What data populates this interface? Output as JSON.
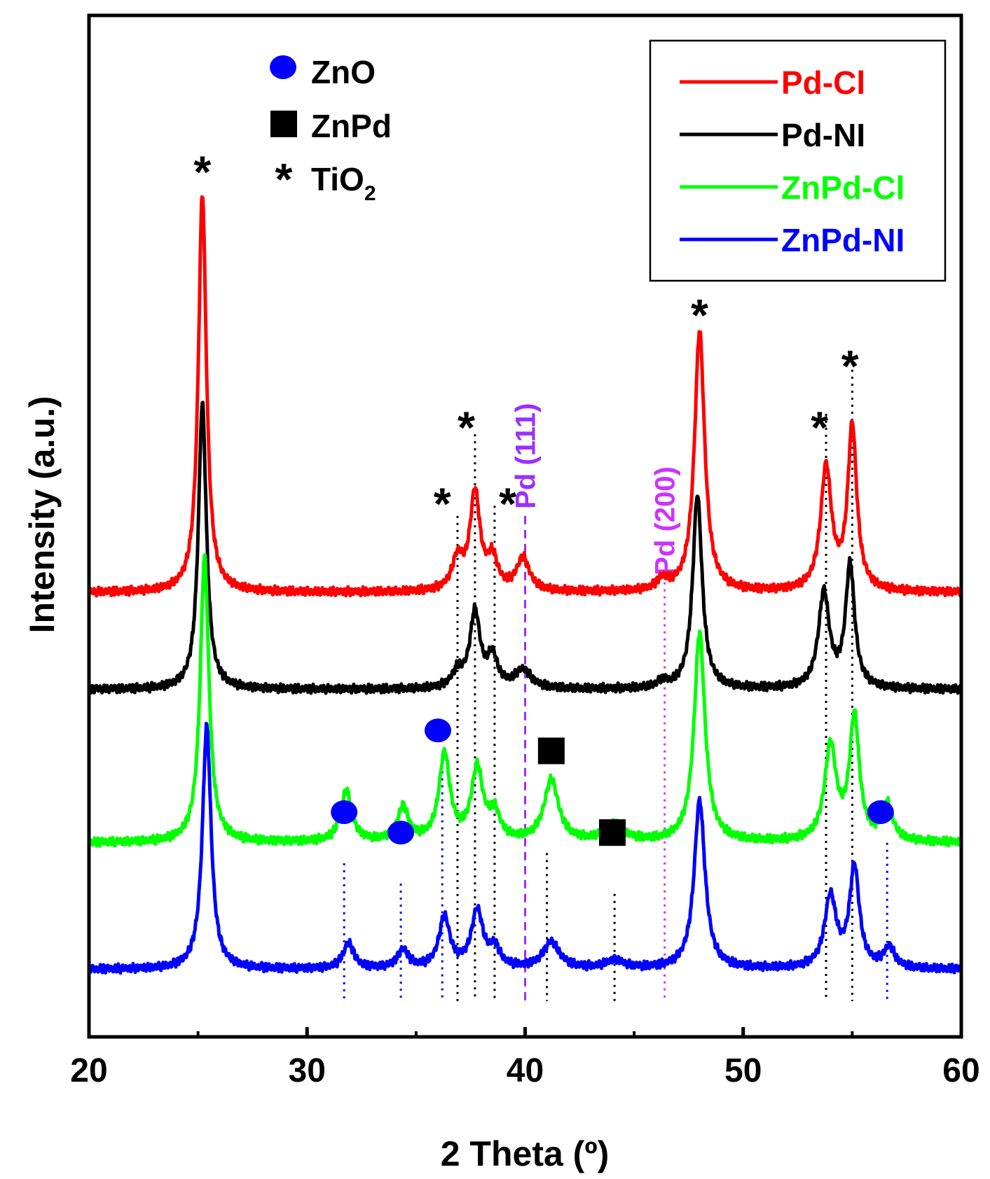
{
  "chart_data": {
    "type": "line",
    "title": "",
    "xlabel": "2 Theta (º)",
    "ylabel": "Intensity (a.u.)",
    "xlim": [
      20,
      60
    ],
    "ylim": [
      0,
      1
    ],
    "x_ticks": [
      20,
      30,
      40,
      50,
      60
    ],
    "grid": false,
    "legend_position": "top-right",
    "series": [
      {
        "name": "Pd-Cl",
        "color": "#ff0000",
        "baseline": 0.435,
        "peaks": [
          {
            "x": 25.2,
            "h": 0.39,
            "w": 0.22
          },
          {
            "x": 36.9,
            "h": 0.03,
            "w": 0.3
          },
          {
            "x": 37.7,
            "h": 0.095,
            "w": 0.28
          },
          {
            "x": 38.5,
            "h": 0.03,
            "w": 0.28
          },
          {
            "x": 39.9,
            "h": 0.032,
            "w": 0.35
          },
          {
            "x": 46.3,
            "h": 0.01,
            "w": 0.3
          },
          {
            "x": 48.0,
            "h": 0.255,
            "w": 0.28
          },
          {
            "x": 53.8,
            "h": 0.12,
            "w": 0.3
          },
          {
            "x": 55.0,
            "h": 0.16,
            "w": 0.25
          }
        ]
      },
      {
        "name": "Pd-NI",
        "color": "#000000",
        "baseline": 0.34,
        "peaks": [
          {
            "x": 25.2,
            "h": 0.28,
            "w": 0.22
          },
          {
            "x": 36.9,
            "h": 0.015,
            "w": 0.3
          },
          {
            "x": 37.7,
            "h": 0.074,
            "w": 0.28
          },
          {
            "x": 38.5,
            "h": 0.03,
            "w": 0.28
          },
          {
            "x": 39.9,
            "h": 0.018,
            "w": 0.45
          },
          {
            "x": 46.3,
            "h": 0.006,
            "w": 0.3
          },
          {
            "x": 47.9,
            "h": 0.19,
            "w": 0.26
          },
          {
            "x": 53.7,
            "h": 0.093,
            "w": 0.3
          },
          {
            "x": 54.9,
            "h": 0.12,
            "w": 0.25
          }
        ]
      },
      {
        "name": "ZnPd-Cl",
        "color": "#00ff00",
        "baseline": 0.19,
        "peaks": [
          {
            "x": 25.3,
            "h": 0.28,
            "w": 0.24
          },
          {
            "x": 31.8,
            "h": 0.05,
            "w": 0.3
          },
          {
            "x": 34.4,
            "h": 0.033,
            "w": 0.3
          },
          {
            "x": 36.3,
            "h": 0.085,
            "w": 0.3
          },
          {
            "x": 37.8,
            "h": 0.07,
            "w": 0.32
          },
          {
            "x": 38.6,
            "h": 0.025,
            "w": 0.3
          },
          {
            "x": 41.2,
            "h": 0.06,
            "w": 0.4
          },
          {
            "x": 44.1,
            "h": 0.017,
            "w": 0.5
          },
          {
            "x": 48.0,
            "h": 0.205,
            "w": 0.3
          },
          {
            "x": 54.0,
            "h": 0.092,
            "w": 0.32
          },
          {
            "x": 55.1,
            "h": 0.12,
            "w": 0.27
          },
          {
            "x": 56.6,
            "h": 0.035,
            "w": 0.3
          }
        ]
      },
      {
        "name": "ZnPd-NI",
        "color": "#0000ff",
        "baseline": 0.066,
        "peaks": [
          {
            "x": 25.4,
            "h": 0.238,
            "w": 0.24
          },
          {
            "x": 31.9,
            "h": 0.025,
            "w": 0.3
          },
          {
            "x": 34.4,
            "h": 0.018,
            "w": 0.3
          },
          {
            "x": 36.3,
            "h": 0.05,
            "w": 0.3
          },
          {
            "x": 37.8,
            "h": 0.056,
            "w": 0.32
          },
          {
            "x": 38.6,
            "h": 0.018,
            "w": 0.3
          },
          {
            "x": 41.2,
            "h": 0.026,
            "w": 0.45
          },
          {
            "x": 44.1,
            "h": 0.008,
            "w": 0.5
          },
          {
            "x": 48.0,
            "h": 0.165,
            "w": 0.3
          },
          {
            "x": 54.0,
            "h": 0.07,
            "w": 0.32
          },
          {
            "x": 55.1,
            "h": 0.098,
            "w": 0.27
          },
          {
            "x": 56.7,
            "h": 0.02,
            "w": 0.3
          }
        ]
      }
    ],
    "phase_legend": [
      {
        "label": "ZnO",
        "symbol": "circle",
        "color": "#0000ff"
      },
      {
        "label": "ZnPd",
        "symbol": "square",
        "color": "#000000"
      },
      {
        "label": "TiO",
        "subscript": "2",
        "symbol": "asterisk",
        "color": "#000000"
      }
    ],
    "reference_lines": [
      {
        "x": 40.0,
        "color": "#9b30ff",
        "style": "dashed",
        "label": "Pd (111)",
        "y_top": 0.51
      },
      {
        "x": 46.4,
        "color": "#cc33ff",
        "style": "dotted",
        "label": "Pd (200)",
        "y_top": 0.445
      },
      {
        "x": 31.7,
        "color": "#0000ff",
        "style": "dotted",
        "y_top": 0.17
      },
      {
        "x": 34.3,
        "color": "#0000ff",
        "style": "dotted",
        "y_top": 0.15
      },
      {
        "x": 36.2,
        "color": "#0000ff",
        "style": "dotted",
        "y_top": 0.26
      },
      {
        "x": 56.6,
        "color": "#0000ff",
        "style": "dotted",
        "y_top": 0.19
      },
      {
        "x": 36.9,
        "color": "#000000",
        "style": "dotted",
        "y_top": 0.51
      },
      {
        "x": 37.7,
        "color": "#000000",
        "style": "dotted",
        "y_top": 0.59
      },
      {
        "x": 38.6,
        "color": "#000000",
        "style": "dotted",
        "y_top": 0.52
      },
      {
        "x": 41.0,
        "color": "#000000",
        "style": "dotted",
        "y_top": 0.18
      },
      {
        "x": 44.1,
        "color": "#000000",
        "style": "dotted",
        "y_top": 0.14
      },
      {
        "x": 53.8,
        "color": "#000000",
        "style": "dotted",
        "y_top": 0.61
      },
      {
        "x": 55.0,
        "color": "#000000",
        "style": "dotted",
        "y_top": 0.66
      }
    ],
    "annotations": [
      {
        "text": "*",
        "x": 25.2,
        "y": 0.855,
        "phase": "TiO2"
      },
      {
        "text": "*",
        "x": 48.0,
        "y": 0.715,
        "phase": "TiO2"
      },
      {
        "text": "*",
        "x": 36.2,
        "y": 0.53,
        "phase": "TiO2"
      },
      {
        "text": "*",
        "x": 37.3,
        "y": 0.605,
        "phase": "TiO2"
      },
      {
        "text": "*",
        "x": 39.2,
        "y": 0.53,
        "phase": "TiO2"
      },
      {
        "text": "*",
        "x": 53.5,
        "y": 0.605,
        "phase": "TiO2"
      },
      {
        "text": "*",
        "x": 54.9,
        "y": 0.665,
        "phase": "TiO2"
      },
      {
        "marker": "circle",
        "x": 31.7,
        "y": 0.22,
        "phase": "ZnO"
      },
      {
        "marker": "circle",
        "x": 34.3,
        "y": 0.2,
        "phase": "ZnO"
      },
      {
        "marker": "circle",
        "x": 36.0,
        "y": 0.3,
        "phase": "ZnO"
      },
      {
        "marker": "circle",
        "x": 56.3,
        "y": 0.22,
        "phase": "ZnO"
      },
      {
        "marker": "square",
        "x": 41.2,
        "y": 0.28,
        "phase": "ZnPd"
      },
      {
        "marker": "square",
        "x": 44.0,
        "y": 0.2,
        "phase": "ZnPd"
      }
    ]
  }
}
